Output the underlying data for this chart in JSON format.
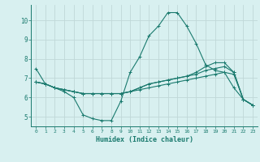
{
  "x": [
    0,
    1,
    2,
    3,
    4,
    5,
    6,
    7,
    8,
    9,
    10,
    11,
    12,
    13,
    14,
    15,
    16,
    17,
    18,
    19,
    20,
    21,
    22,
    23
  ],
  "line1": [
    7.5,
    6.7,
    6.5,
    6.3,
    6.0,
    5.1,
    4.9,
    4.8,
    4.8,
    5.8,
    7.3,
    8.1,
    9.2,
    9.7,
    10.4,
    10.4,
    9.7,
    8.8,
    7.7,
    7.4,
    7.3,
    6.5,
    5.9,
    5.6
  ],
  "line2": [
    6.8,
    6.7,
    6.5,
    6.4,
    6.3,
    6.2,
    6.2,
    6.2,
    6.2,
    6.2,
    6.3,
    6.4,
    6.5,
    6.6,
    6.7,
    6.8,
    6.9,
    7.0,
    7.1,
    7.2,
    7.3,
    7.2,
    5.9,
    5.6
  ],
  "line3": [
    6.8,
    6.7,
    6.5,
    6.4,
    6.3,
    6.2,
    6.2,
    6.2,
    6.2,
    6.2,
    6.3,
    6.5,
    6.7,
    6.8,
    6.9,
    7.0,
    7.1,
    7.2,
    7.4,
    7.5,
    7.6,
    7.3,
    5.9,
    5.6
  ],
  "line4": [
    6.8,
    6.7,
    6.5,
    6.4,
    6.3,
    6.2,
    6.2,
    6.2,
    6.2,
    6.2,
    6.3,
    6.5,
    6.7,
    6.8,
    6.9,
    7.0,
    7.1,
    7.3,
    7.6,
    7.8,
    7.8,
    7.3,
    5.9,
    5.6
  ],
  "line_color": "#1a7a6e",
  "bg_color": "#d8f0f0",
  "grid_color": "#c0d8d8",
  "xlabel": "Humidex (Indice chaleur)",
  "ylim": [
    4.5,
    10.8
  ],
  "xlim": [
    -0.5,
    23.5
  ],
  "yticks": [
    5,
    6,
    7,
    8,
    9,
    10
  ],
  "xticks": [
    0,
    1,
    2,
    3,
    4,
    5,
    6,
    7,
    8,
    9,
    10,
    11,
    12,
    13,
    14,
    15,
    16,
    17,
    18,
    19,
    20,
    21,
    22,
    23
  ]
}
